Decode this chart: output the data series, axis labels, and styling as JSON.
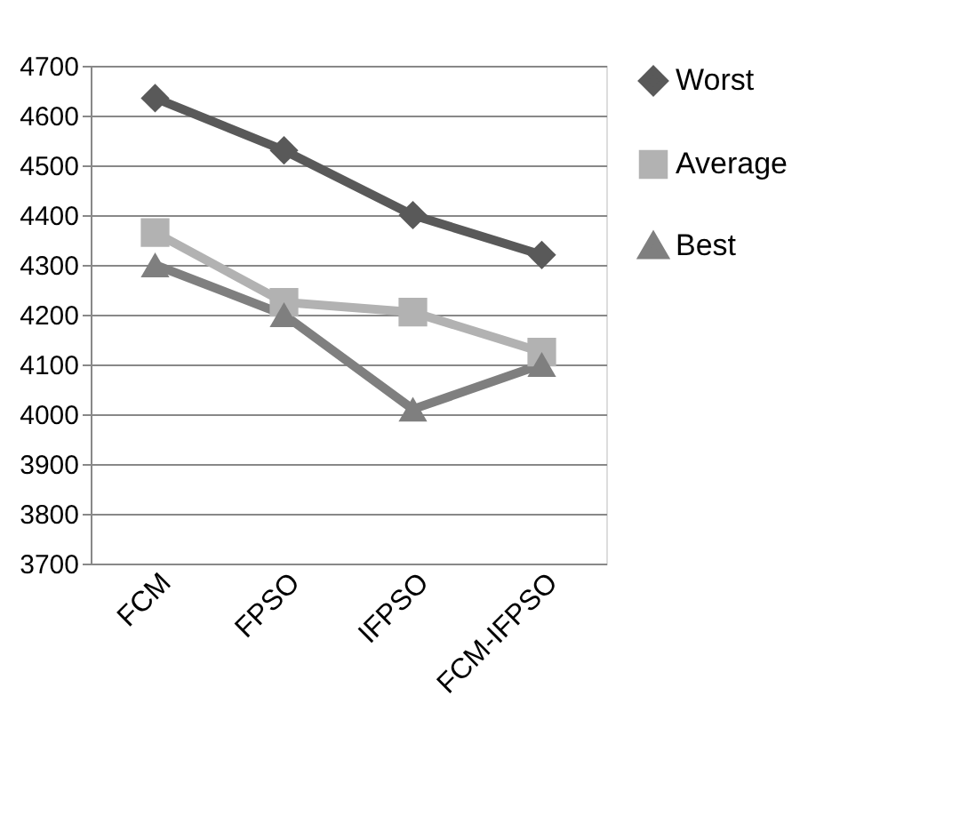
{
  "chart_data": {
    "type": "line",
    "categories": [
      "FCM",
      "FPSO",
      "IFPSO",
      "FCM-IFPSO"
    ],
    "series": [
      {
        "name": "Worst",
        "color": "#595959",
        "marker": "diamond",
        "values": [
          4635,
          4530,
          4400,
          4320
        ]
      },
      {
        "name": "Average",
        "color": "#b2b2b2",
        "marker": "square",
        "values": [
          4365,
          4225,
          4205,
          4125
        ]
      },
      {
        "name": "Best",
        "color": "#7f7f7f",
        "marker": "triangle",
        "values": [
          4300,
          4200,
          4010,
          4100
        ]
      }
    ],
    "ylim": [
      3700,
      4700
    ],
    "yticks": [
      3700,
      3800,
      3900,
      4000,
      4100,
      4200,
      4300,
      4400,
      4500,
      4600,
      4700
    ],
    "grid": "y",
    "legend": "right",
    "line_style": "solid"
  }
}
